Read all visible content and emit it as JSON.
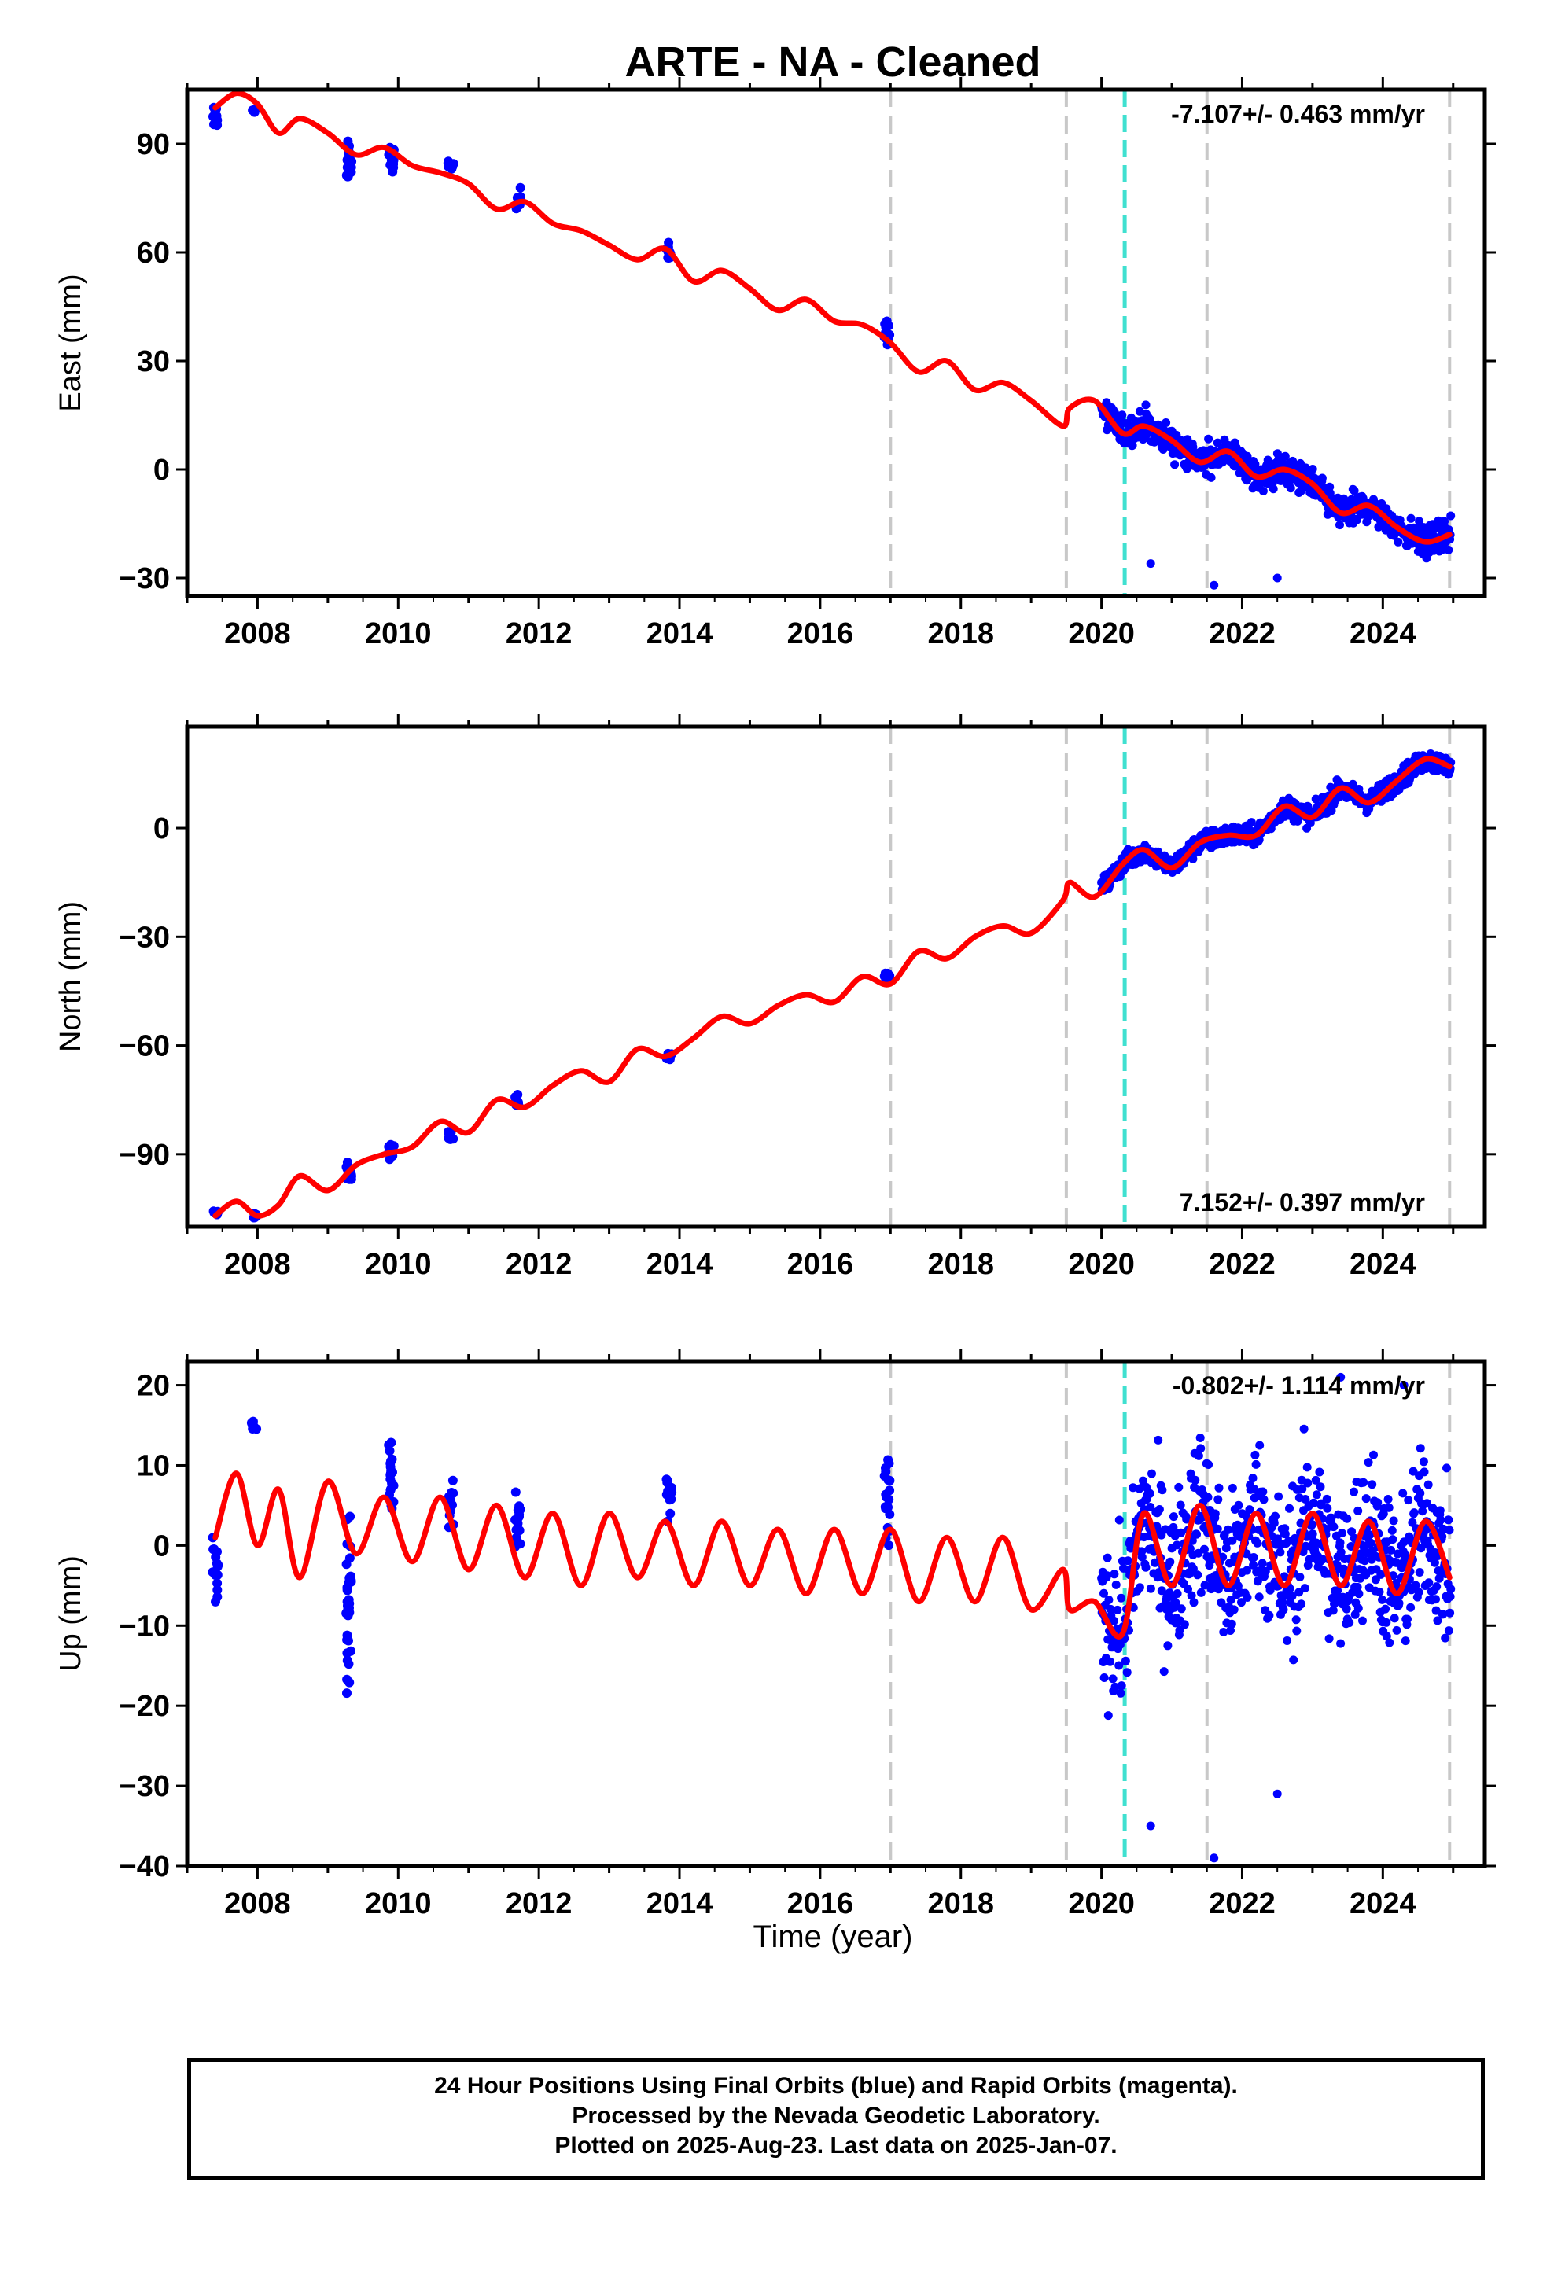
{
  "chart_data": {
    "type": "scatter",
    "title": "ARTE  - NA - Cleaned",
    "xlabel": "Time (year)",
    "xlim": [
      2007.0,
      2025.45
    ],
    "xticks": [
      2008,
      2010,
      2012,
      2014,
      2016,
      2018,
      2020,
      2022,
      2024
    ],
    "grid": false,
    "colors": {
      "observations": "#0000ff",
      "model": "#ff0000",
      "equipment_change": "#c8c8c8",
      "earthquake": "#40e0d0"
    },
    "equipment_change_epochs": [
      2017.0,
      2019.5,
      2021.5,
      2024.95
    ],
    "earthquake_epochs": [
      2020.33
    ],
    "panels": [
      {
        "component": "East",
        "ylabel": "East (mm)",
        "rate_text": "-7.107+/- 0.463 mm/yr",
        "rate_position": "top-right",
        "ylim": [
          -35,
          105
        ],
        "yticks": [
          -30,
          0,
          30,
          60,
          90
        ],
        "model_line": {
          "x": [
            2007.4,
            2007.7,
            2008.0,
            2008.3,
            2008.6,
            2009.0,
            2009.4,
            2009.8,
            2010.2,
            2010.6,
            2011.0,
            2011.4,
            2011.8,
            2012.2,
            2012.6,
            2013.0,
            2013.4,
            2013.8,
            2014.2,
            2014.6,
            2015.0,
            2015.4,
            2015.8,
            2016.2,
            2016.6,
            2017.0,
            2017.4,
            2017.8,
            2018.2,
            2018.6,
            2019.0,
            2019.45,
            2019.55,
            2019.9,
            2020.3,
            2020.6,
            2021.0,
            2021.4,
            2021.8,
            2022.2,
            2022.6,
            2023.0,
            2023.4,
            2023.8,
            2024.2,
            2024.6,
            2024.95
          ],
          "y": [
            100,
            104,
            101,
            93,
            97,
            93,
            87,
            89,
            84,
            82,
            79,
            72,
            74,
            68,
            66,
            62,
            58,
            61,
            52,
            55,
            50,
            44,
            47,
            41,
            40,
            35,
            27,
            30,
            22,
            24,
            19,
            12,
            17,
            19,
            10,
            12,
            8,
            2,
            5,
            -2,
            0,
            -4,
            -12,
            -10,
            -16,
            -20,
            -18
          ]
        },
        "observation_clusters": [
          {
            "t": 2007.4,
            "center": 98,
            "spread": 4
          },
          {
            "t": 2007.95,
            "center": 99,
            "spread": 1
          },
          {
            "t": 2009.3,
            "center": 85,
            "spread": 6
          },
          {
            "t": 2009.9,
            "center": 86,
            "spread": 4
          },
          {
            "t": 2010.75,
            "center": 84,
            "spread": 2
          },
          {
            "t": 2011.7,
            "center": 75,
            "spread": 3
          },
          {
            "t": 2013.85,
            "center": 60,
            "spread": 3
          },
          {
            "t": 2016.95,
            "center": 38,
            "spread": 4
          }
        ],
        "dense_observations": {
          "from": 2020.0,
          "to": 2024.97,
          "noise": 3,
          "outliers": [
            -26,
            -32,
            -30
          ]
        }
      },
      {
        "component": "North",
        "ylabel": "North (mm)",
        "rate_text": "7.152+/- 0.397 mm/yr",
        "rate_position": "bottom-right",
        "ylim": [
          -110,
          28
        ],
        "yticks": [
          -90,
          -60,
          -30,
          0
        ],
        "model_line": {
          "x": [
            2007.4,
            2007.7,
            2008.0,
            2008.3,
            2008.6,
            2009.0,
            2009.4,
            2009.8,
            2010.2,
            2010.6,
            2011.0,
            2011.4,
            2011.8,
            2012.2,
            2012.6,
            2013.0,
            2013.4,
            2013.8,
            2014.2,
            2014.6,
            2015.0,
            2015.4,
            2015.8,
            2016.2,
            2016.6,
            2017.0,
            2017.4,
            2017.8,
            2018.2,
            2018.6,
            2019.0,
            2019.45,
            2019.55,
            2019.9,
            2020.3,
            2020.6,
            2021.0,
            2021.4,
            2021.8,
            2022.2,
            2022.6,
            2023.0,
            2023.4,
            2023.8,
            2024.2,
            2024.6,
            2024.95
          ],
          "y": [
            -107,
            -103,
            -107,
            -104,
            -96,
            -100,
            -93,
            -90,
            -88,
            -81,
            -84,
            -75,
            -77,
            -71,
            -67,
            -70,
            -61,
            -63,
            -58,
            -52,
            -54,
            -49,
            -46,
            -48,
            -41,
            -43,
            -34,
            -36,
            -30,
            -27,
            -29,
            -20,
            -15,
            -19,
            -10,
            -6,
            -11,
            -4,
            -2,
            -2,
            6,
            3,
            11,
            7,
            13,
            19,
            17
          ]
        },
        "observation_clusters": [
          {
            "t": 2007.4,
            "center": -106,
            "spread": 1
          },
          {
            "t": 2007.95,
            "center": -107,
            "spread": 1
          },
          {
            "t": 2009.3,
            "center": -95,
            "spread": 3
          },
          {
            "t": 2009.9,
            "center": -89,
            "spread": 3
          },
          {
            "t": 2010.75,
            "center": -85,
            "spread": 2
          },
          {
            "t": 2011.7,
            "center": -75,
            "spread": 2
          },
          {
            "t": 2013.85,
            "center": -63,
            "spread": 1
          },
          {
            "t": 2016.95,
            "center": -41,
            "spread": 2
          }
        ],
        "dense_observations": {
          "from": 2020.0,
          "to": 2024.97,
          "noise": 2,
          "outliers": []
        }
      },
      {
        "component": "Up",
        "ylabel": "Up (mm)",
        "rate_text": "-0.802+/- 1.114 mm/yr",
        "rate_position": "top-right",
        "ylim": [
          -40,
          23
        ],
        "yticks": [
          -40,
          -30,
          -20,
          -10,
          0,
          10,
          20
        ],
        "model_line": {
          "x": [
            2007.4,
            2007.7,
            2008.0,
            2008.3,
            2008.6,
            2009.0,
            2009.4,
            2009.8,
            2010.2,
            2010.6,
            2011.0,
            2011.4,
            2011.8,
            2012.2,
            2012.6,
            2013.0,
            2013.4,
            2013.8,
            2014.2,
            2014.6,
            2015.0,
            2015.4,
            2015.8,
            2016.2,
            2016.6,
            2017.0,
            2017.4,
            2017.8,
            2018.2,
            2018.6,
            2019.0,
            2019.45,
            2019.55,
            2019.9,
            2020.3,
            2020.6,
            2021.0,
            2021.4,
            2021.8,
            2022.2,
            2022.6,
            2023.0,
            2023.4,
            2023.8,
            2024.2,
            2024.6,
            2024.95
          ],
          "y": [
            1,
            9,
            0,
            7,
            -4,
            8,
            -1,
            6,
            -2,
            6,
            -3,
            5,
            -4,
            4,
            -5,
            4,
            -4,
            3,
            -5,
            3,
            -5,
            2,
            -6,
            2,
            -6,
            2,
            -7,
            1,
            -7,
            1,
            -8,
            -3,
            -8,
            -7,
            -11,
            4,
            -5,
            5,
            -5,
            4,
            -5,
            4,
            -5,
            3,
            -6,
            3,
            -4
          ]
        },
        "observation_clusters": [
          {
            "t": 2007.4,
            "center": -3,
            "spread": 5
          },
          {
            "t": 2007.95,
            "center": 15,
            "spread": 1
          },
          {
            "t": 2009.3,
            "center": -8,
            "spread": 14
          },
          {
            "t": 2009.9,
            "center": 8,
            "spread": 8
          },
          {
            "t": 2010.75,
            "center": 4,
            "spread": 4
          },
          {
            "t": 2011.7,
            "center": 3,
            "spread": 5
          },
          {
            "t": 2013.85,
            "center": 6,
            "spread": 4
          },
          {
            "t": 2016.95,
            "center": 5,
            "spread": 7
          }
        ],
        "dense_observations": {
          "from": 2020.0,
          "to": 2024.97,
          "noise": 7,
          "outliers": [
            -35,
            -39,
            -31,
            21,
            20
          ]
        }
      }
    ]
  },
  "footer": {
    "line1": "24 Hour Positions Using Final Orbits (blue) and Rapid Orbits (magenta).",
    "line2": "Processed by the Nevada Geodetic Laboratory.",
    "line3": "Plotted on 2025-Aug-23. Last data on 2025-Jan-07."
  }
}
